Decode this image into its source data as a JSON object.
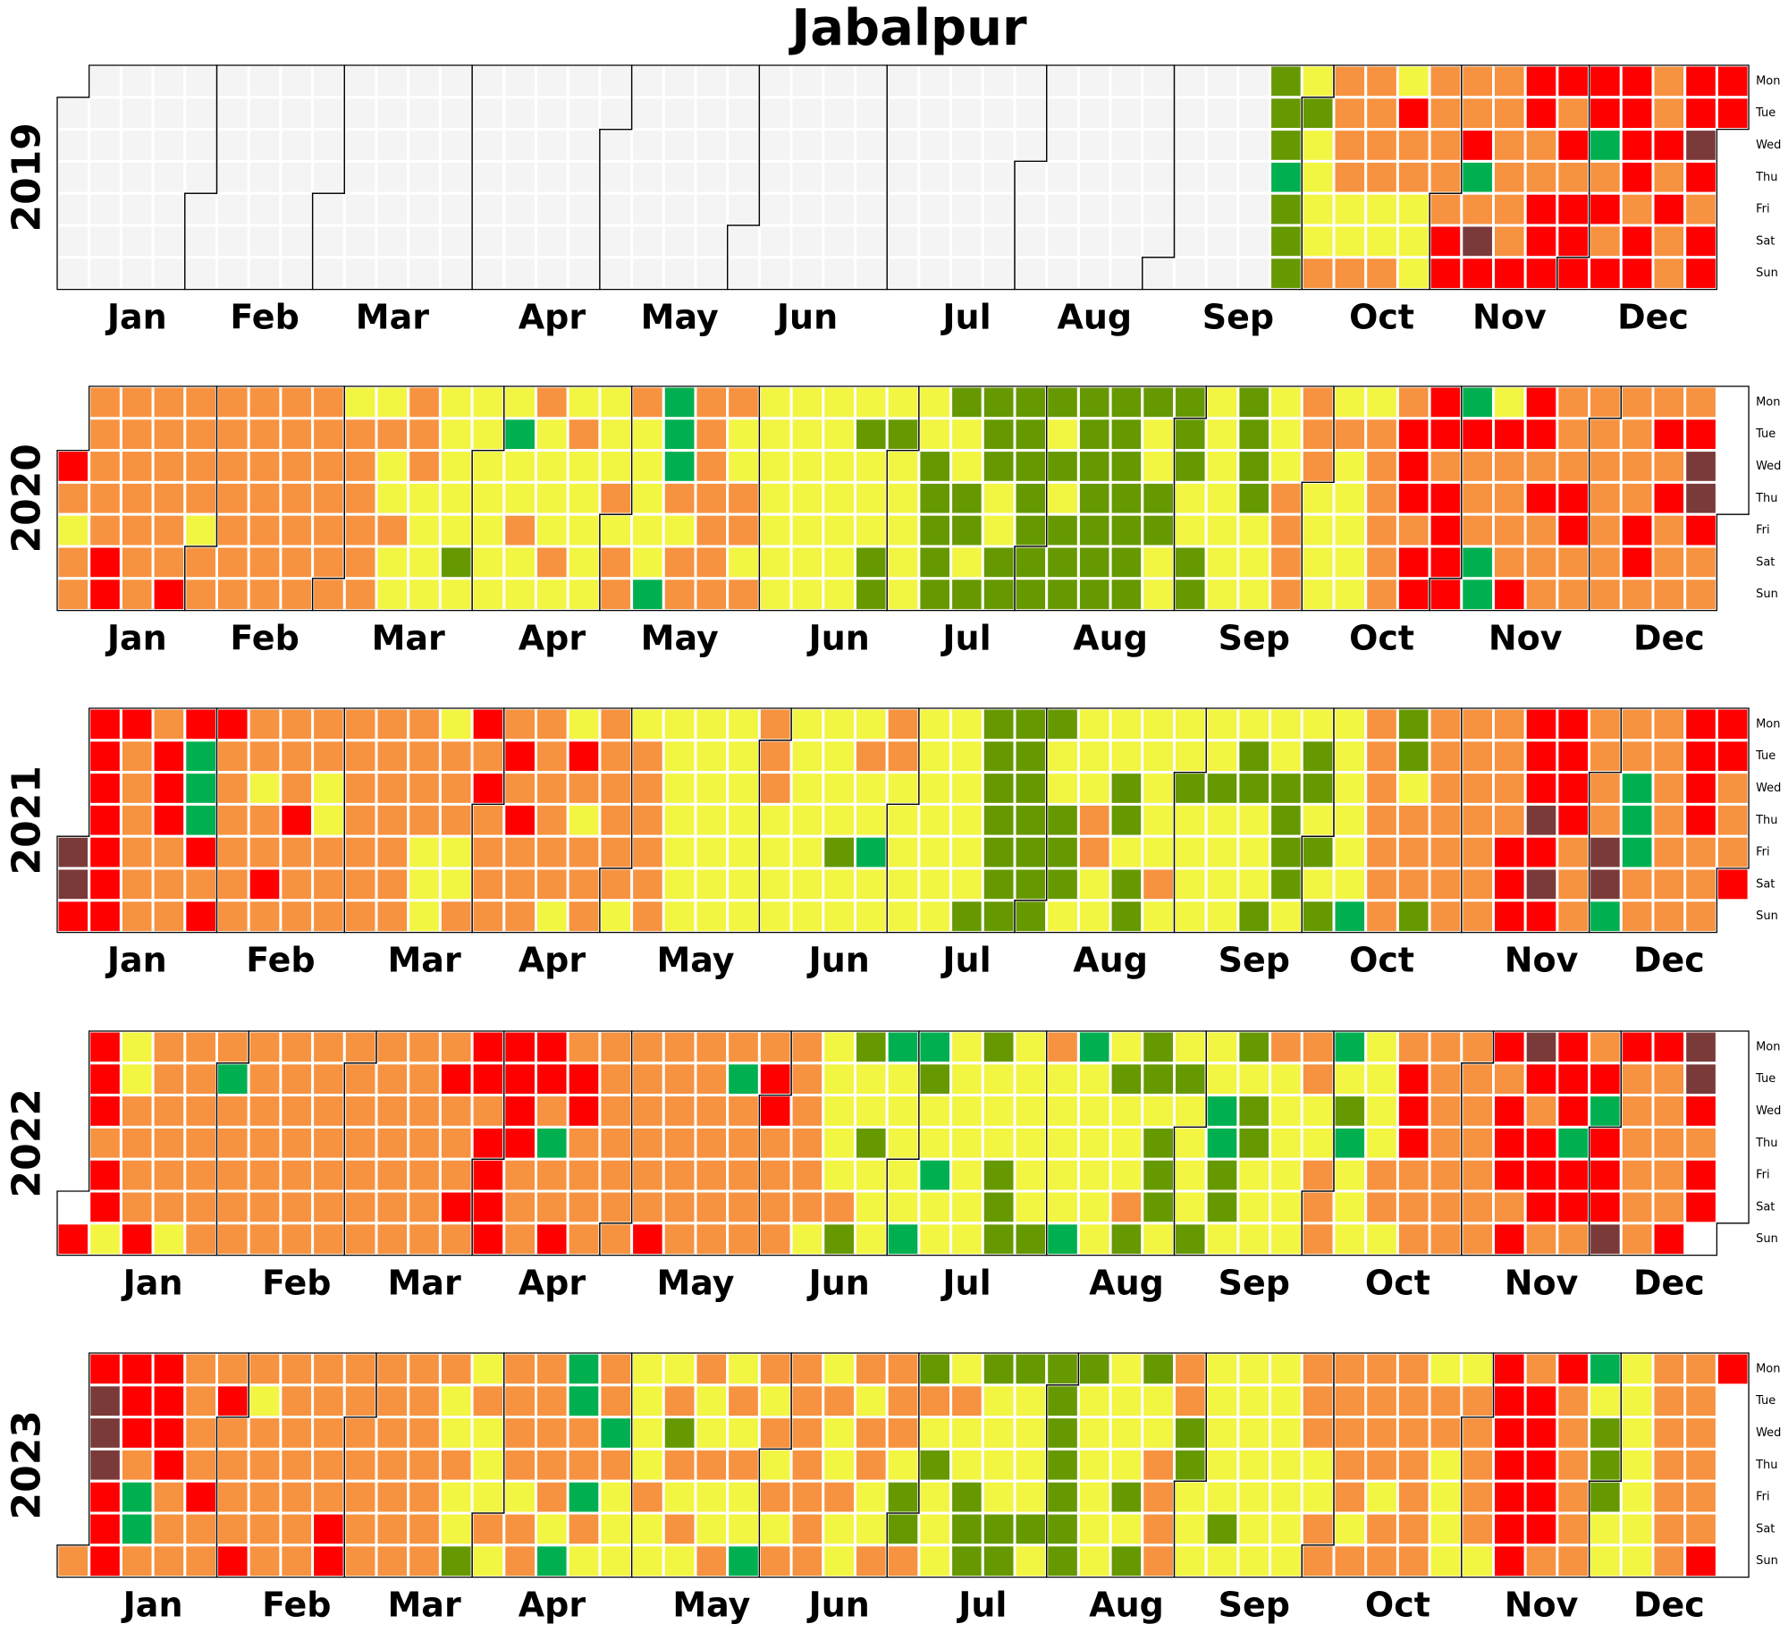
{
  "chart_data": {
    "type": "heatmap",
    "title": "Jabalpur",
    "weekday_labels": [
      "Mon",
      "Tue",
      "Wed",
      "Thu",
      "Fri",
      "Sat",
      "Sun"
    ],
    "month_labels": [
      "Jan",
      "Feb",
      "Mar",
      "Apr",
      "May",
      "Jun",
      "Jul",
      "Aug",
      "Sep",
      "Oct",
      "Nov",
      "Dec"
    ],
    "category_colors": {
      "N": "#f4f4f4",
      "G": "#00b050",
      "S": "#669900",
      "Y": "#f2f542",
      "O": "#f79240",
      "R": "#ff0000",
      "B": "#7b3a3a"
    },
    "cell_encoding": "Each year lists 53 week columns (Monday to Sunday). Letters name colors in category_colors; '-' marks a day outside the year.",
    "years": [
      {
        "year": "2019",
        "weeks": [
          "-NNNNNN",
          "NNNNNNN",
          "NNNNNNN",
          "NNNNNNN",
          "NNNNNNN",
          "NNNNNNN",
          "NNNNNNN",
          "NNNNNNN",
          "NNNNNNN",
          "NNNNNNN",
          "NNNNNNN",
          "NNNNNNN",
          "NNNNNNN",
          "NNNNNNN",
          "NNNNNNN",
          "NNNNNNN",
          "NNNNNNN",
          "NNNNNNN",
          "NNNNNNN",
          "NNNNNNN",
          "NNNNNNN",
          "NNNNNNN",
          "NNNNNNN",
          "NNNNNNN",
          "NNNNNNN",
          "NNNNNNN",
          "NNNNNNN",
          "NNNNNNN",
          "NNNNNNN",
          "NNNNNNN",
          "NNNNNNN",
          "NNNNNNN",
          "NNNNNNN",
          "NNNNNNN",
          "NNNNNNN",
          "NNNNNNN",
          "NNNNNNN",
          "NNNNNNN",
          "SSSGSSS",
          "YSYYYYO",
          "OOOOYYO",
          "OOOOYYO",
          "YROOYYY",
          "OOOOORR",
          "OORGOBR",
          "OOOOOOR",
          "RROORRR",
          "RORORRR",
          "RRGOROR",
          "RRRRORR",
          "OOROROO",
          "RRBRORR",
          "RR-----"
        ]
      },
      {
        "year": "2020",
        "weeks": [
          "--ROYOO",
          "OOOOORR",
          "OOOOOOO",
          "OOOOOOR",
          "OOOOYOO",
          "OOOOOOO",
          "OOOOOOO",
          "OOOOOOO",
          "OOOOOOO",
          "YOOOOOO",
          "YOYYOYY",
          "OOOYYYY",
          "YYYYYSY",
          "YYYYYYY",
          "YGYYOYY",
          "OYYYYOY",
          "YOYYYYY",
          "YYYOYOO",
          "OYYYYYG",
          "GGGOYOO",
          "OOOOOOO",
          "OYYOOYO",
          "YYYYYYY",
          "YYYYYYY",
          "YYYYYYY",
          "YSYYYSS",
          "YSYYYYY",
          "YYSSSSS",
          "SYYSSYS",
          "SSSYYSS",
          "SSSSSSS",
          "SYSYSSS",
          "SSSSSSS",
          "SSSSSSS",
          "SYYSSYY",
          "SSSYYSS",
          "YYYYYYY",
          "SSSSYYY",
          "YYYOOOO",
          "OOOYYYY",
          "YOYYYYY",
          "YOOOOOO",
          "ORRRORR",
          "RRORRRR",
          "GROOOGG",
          "YROOOOR",
          "RROROOO",
          "OOORROO",
          "OOOOOOO",
          "OOOORRO",
          "OROROOO",
          "ORBBROO",
          "-------"
        ]
      },
      {
        "year": "2021",
        "weeks": [
          "----BBR",
          "RRRRRRR",
          "ROOOOOO",
          "ORRROOO",
          "RGGGROR",
          "ROOOOOO",
          "OOYOORO",
          "OOOROOO",
          "OOYYOOO",
          "OOOOOOO",
          "OOOOOOO",
          "OOOOYYY",
          "YOOOYYO",
          "ROROOOO",
          "OROROOO",
          "OOOOOOY",
          "YROYOOO",
          "OOOOOOY",
          "YOOOOOO",
          "YYYYYYY",
          "YYYYYYY",
          "YYYYYYY",
          "OOOYYYY",
          "YYYYYYY",
          "YYYYSYY",
          "YOYYGYY",
          "OOYYYYY",
          "YYYYYYY",
          "YYYYYYS",
          "SSSSSSS",
          "SSSSSSS",
          "SYYSSSY",
          "YYYOOYY",
          "YYSSYSS",
          "YYYYYOY",
          "YYSYYYY",
          "YYSYYYY",
          "YSSYYYS",
          "YYSSSSY",
          "YSSYSYS",
          "YYYYYYG",
          "OOOOOOO",
          "SSYOOOS",
          "OOOOOOO",
          "OOOOOOO",
          "OOOORRR",
          "RRRBRBR",
          "RRRROOO",
          "OOOOBBG",
          "OOGGGOO",
          "OOOOOOO",
          "RRRROOO",
          "RROOOR-"
        ]
      },
      {
        "year": "2022",
        "weeks": [
          "------R",
          "RRRORRY",
          "YYOOOOR",
          "OOOOOOY",
          "OOOOOOO",
          "OGOOOOO",
          "OOOOOOO",
          "OOOOOOO",
          "OOOOOOO",
          "OOOOOOO",
          "OOOOOOO",
          "OOOOOOO",
          "OROOORO",
          "RRORRRR",
          "RRRROOO",
          "RROGOOR",
          "ORROOOO",
          "OOOOOOO",
          "OOOOOOR",
          "OOOOOOO",
          "OOOOOOO",
          "OGOOOOO",
          "ORROOOO",
          "OOOOOOY",
          "YYYYYOS",
          "SYYSYYY",
          "GYYYYYG",
          "GSYYGYY",
          "YYYYYYY",
          "SYYYSSS",
          "YYYYYYS",
          "OYYYYYG",
          "GYYYYYY",
          "YSYYYOS",
          "SSYSSSY",
          "YSYYYYS",
          "YYGGSSY",
          "SYSSYYY",
          "OYYYYYY",
          "OOYYOOO",
          "GYSGYYY",
          "YYYYOOY",
          "ORRROOO",
          "OOOOOOO",
          "OOOOOOO",
          "RORRROR",
          "BRORRRO",
          "RRRGRRO",
          "ORGRRRB",
          "ROOOOOO",
          "ROOOOOR",
          "BBRORR-",
          "-------"
        ]
      },
      {
        "year": "2023",
        "weeks": [
          "------O",
          "RBBBRRR",
          "RRROGGO",
          "RRRROOO",
          "OOOOROO",
          "OROOOOR",
          "OYOOOOO",
          "OOOOOOO",
          "OOOOORR",
          "OOOOOOO",
          "OOOOOOO",
          "OOOOOOO",
          "OYYOYYS",
          "YOYYYOY",
          "OOOOYOO",
          "OOOOOYG",
          "GGOOGOY",
          "OOGOYYY",
          "YYYYOYY",
          "YOSOYOY",
          "OYYOYYO",
          "YOYOYYG",
          "OYOYOYO",
          "OOOOOOO",
          "YOYYOYY",
          "OYOOYYO",
          "OOOYSSO",
          "SOYSYYY",
          "YOYYSSS",
          "SYYYYSS",
          "SYYYYSY",
          "SSSSSSS",
          "SYYYYYY",
          "YYYYSYS",
          "SYYOOOO",
          "OOSSYYY",
          "YYYYYSY",
          "YYYYYYY",
          "YYYYYYY",
          "OOOYYOO",
          "OOOOOYO",
          "OOOOYOO",
          "OOOOOOO",
          "YOOYYYY",
          "YOOOOOY",
          "RRRRRRR",
          "ORRRRRO",
          "ROOOOOO",
          "GYSSSYY",
          "YYYYYYY",
          "OOOOOOO",
          "OOOOOOR",
          "R------"
        ]
      }
    ]
  }
}
